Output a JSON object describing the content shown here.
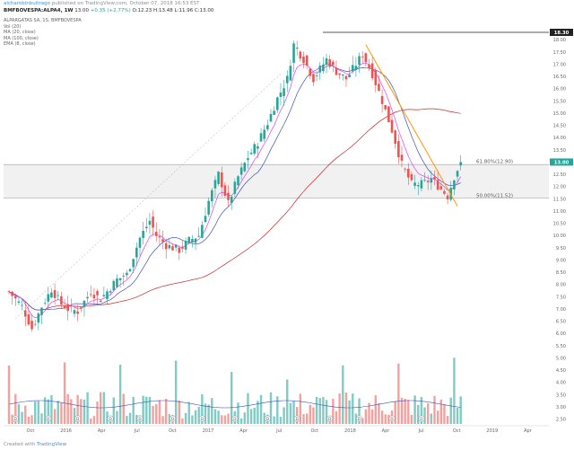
{
  "header": {
    "author": "alcharobinbuitrago",
    "published_text": "published on TradingView.com, October 07, 2018 16:53 EST",
    "symbol_line": "BMFBOVESPA:ALPA4, 1W",
    "ohlc_values": "13.00",
    "change": "+0.35 (+2.77%)",
    "ohlc_detail": "O:12.23 H:13.48 L:11.96 C:13.00"
  },
  "legend": {
    "title": "ALPARGATAS SA, 1S, BMFBOVESPA",
    "items": [
      "Vol (20)",
      "MA (20, close)",
      "MA (100, close)",
      "EMA (8, close)"
    ]
  },
  "footer": {
    "created_with": "Created with",
    "brand": "TradingView"
  },
  "chart_data": {
    "type": "candlestick",
    "x_ticks": [
      "Oct",
      "2016",
      "Apr",
      "Jul",
      "Oct",
      "2017",
      "Apr",
      "Jul",
      "Oct",
      "2018",
      "Apr",
      "Jul",
      "Oct",
      "2019",
      "Apr"
    ],
    "y_ticks": [
      "18.00",
      "17.50",
      "17.00",
      "16.50",
      "16.00",
      "15.50",
      "15.00",
      "14.50",
      "14.00",
      "13.50",
      "13.00",
      "12.50",
      "12.00",
      "11.50",
      "11.00",
      "10.50",
      "10.00",
      "9.50",
      "9.00",
      "8.50",
      "8.00",
      "7.50",
      "7.00",
      "6.50",
      "6.00",
      "5.50",
      "5.00",
      "4.50",
      "4.00",
      "3.50",
      "3.00",
      "2.50"
    ],
    "y_range": [
      2.3,
      18.3
    ],
    "price_scale": "right",
    "last_price": 13.0,
    "resistance_level": 18.3,
    "resistance_label": "18.30",
    "last_price_label": "13.00",
    "fib_levels": [
      {
        "label": "61.80%(12.90)",
        "value": 12.9
      },
      {
        "label": "50.00%(11.52)",
        "value": 11.52
      }
    ],
    "fib_band_top": 12.9,
    "fib_band_bottom": 11.52,
    "grid": false,
    "colors": {
      "up": "#26a69a",
      "down": "#ef5350",
      "ma20": "#3f51b5",
      "ma100": "#c62828",
      "ema8": "#e040fb",
      "trendline": "#ff9800",
      "volume_up": "#80cbc4",
      "volume_down": "#f4a19e",
      "volume_ma": "#3f51b5",
      "fib_band": "#eeeeee"
    },
    "events": [
      "D",
      "D",
      "D",
      "D",
      "D",
      "D",
      "D",
      "D",
      "D",
      "D",
      "D",
      "D",
      "D",
      "D"
    ]
  }
}
